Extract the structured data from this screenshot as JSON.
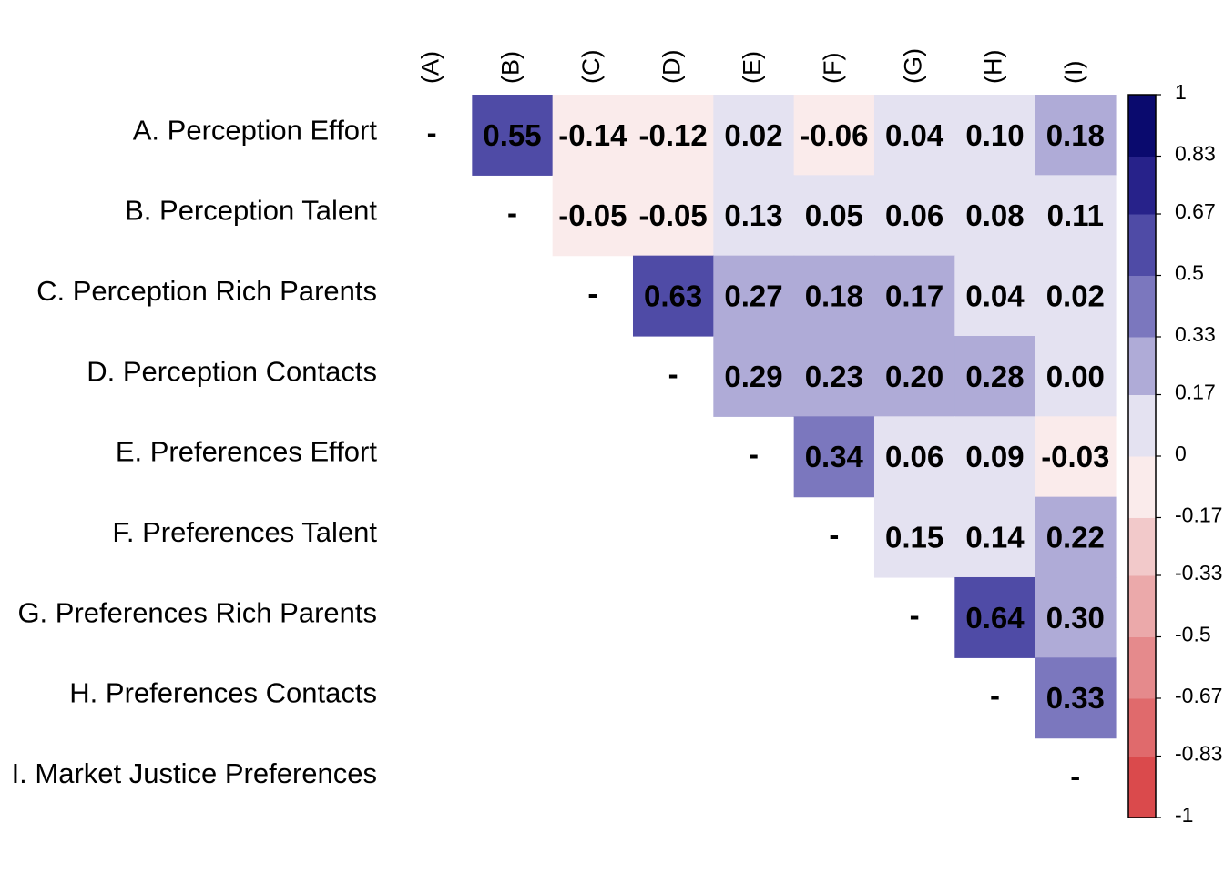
{
  "chart_data": {
    "type": "heatmap",
    "layout": "upper-triangle",
    "row_labels": [
      "A. Perception Effort",
      "B. Perception Talent",
      "C. Perception Rich Parents",
      "D. Perception Contacts",
      "E. Preferences Effort",
      "F. Preferences Talent",
      "G. Preferences Rich Parents",
      "H. Preferences Contacts",
      "I. Market Justice Preferences"
    ],
    "col_labels": [
      "(A)",
      "(B)",
      "(C)",
      "(D)",
      "(E)",
      "(F)",
      "(G)",
      "(H)",
      "(I)"
    ],
    "diagonal_marker": "-",
    "matrix": [
      [
        null,
        0.55,
        -0.14,
        -0.12,
        0.02,
        -0.06,
        0.04,
        0.1,
        0.18
      ],
      [
        null,
        null,
        -0.05,
        -0.05,
        0.13,
        0.05,
        0.06,
        0.08,
        0.11
      ],
      [
        null,
        null,
        null,
        0.63,
        0.27,
        0.18,
        0.17,
        0.04,
        0.02
      ],
      [
        null,
        null,
        null,
        null,
        0.29,
        0.23,
        0.2,
        0.28,
        0.0
      ],
      [
        null,
        null,
        null,
        null,
        null,
        0.34,
        0.06,
        0.09,
        -0.03
      ],
      [
        null,
        null,
        null,
        null,
        null,
        null,
        0.15,
        0.14,
        0.22
      ],
      [
        null,
        null,
        null,
        null,
        null,
        null,
        null,
        0.64,
        0.3
      ],
      [
        null,
        null,
        null,
        null,
        null,
        null,
        null,
        null,
        0.33
      ],
      [
        null,
        null,
        null,
        null,
        null,
        null,
        null,
        null,
        null
      ]
    ],
    "value_labels": [
      [
        null,
        "0.55",
        "-0.14",
        "-0.12",
        "0.02",
        "-0.06",
        "0.04",
        "0.10",
        "0.18"
      ],
      [
        null,
        null,
        "-0.05",
        "-0.05",
        "0.13",
        "0.05",
        "0.06",
        "0.08",
        "0.11"
      ],
      [
        null,
        null,
        null,
        "0.63",
        "0.27",
        "0.18",
        "0.17",
        "0.04",
        "0.02"
      ],
      [
        null,
        null,
        null,
        null,
        "0.29",
        "0.23",
        "0.20",
        "0.28",
        "0.00"
      ],
      [
        null,
        null,
        null,
        null,
        null,
        "0.34",
        "0.06",
        "0.09",
        "-0.03"
      ],
      [
        null,
        null,
        null,
        null,
        null,
        null,
        "0.15",
        "0.14",
        "0.22"
      ],
      [
        null,
        null,
        null,
        null,
        null,
        null,
        null,
        "0.64",
        "0.30"
      ],
      [
        null,
        null,
        null,
        null,
        null,
        null,
        null,
        null,
        "0.33"
      ],
      [
        null,
        null,
        null,
        null,
        null,
        null,
        null,
        null,
        null
      ]
    ],
    "color_scale": {
      "range": [
        -1,
        1
      ],
      "bins": [
        {
          "from": -1.0,
          "to": -0.83,
          "color": "#DA4A4C"
        },
        {
          "from": -0.83,
          "to": -0.67,
          "color": "#E06A6C"
        },
        {
          "from": -0.67,
          "to": -0.5,
          "color": "#E58A8C"
        },
        {
          "from": -0.5,
          "to": -0.33,
          "color": "#EBA9AA"
        },
        {
          "from": -0.33,
          "to": -0.17,
          "color": "#F2C9CA"
        },
        {
          "from": -0.17,
          "to": 0.0,
          "color": "#FAEBEB"
        },
        {
          "from": 0.0,
          "to": 0.17,
          "color": "#E4E2F1"
        },
        {
          "from": 0.17,
          "to": 0.33,
          "color": "#AFABD7"
        },
        {
          "from": 0.33,
          "to": 0.5,
          "color": "#7B77BE"
        },
        {
          "from": 0.5,
          "to": 0.67,
          "color": "#4F4BA6"
        },
        {
          "from": 0.67,
          "to": 0.83,
          "color": "#27228A"
        },
        {
          "from": 0.83,
          "to": 1.0,
          "color": "#0A0A6E"
        }
      ],
      "tick_labels": [
        "1",
        "0.83",
        "0.67",
        "0.5",
        "0.33",
        "0.17",
        "0",
        "-0.17",
        "-0.33",
        "-0.5",
        "-0.67",
        "-0.83",
        "-1"
      ],
      "tick_values": [
        1,
        0.83,
        0.67,
        0.5,
        0.33,
        0.17,
        0,
        -0.17,
        -0.33,
        -0.5,
        -0.67,
        -0.83,
        -1
      ]
    }
  }
}
